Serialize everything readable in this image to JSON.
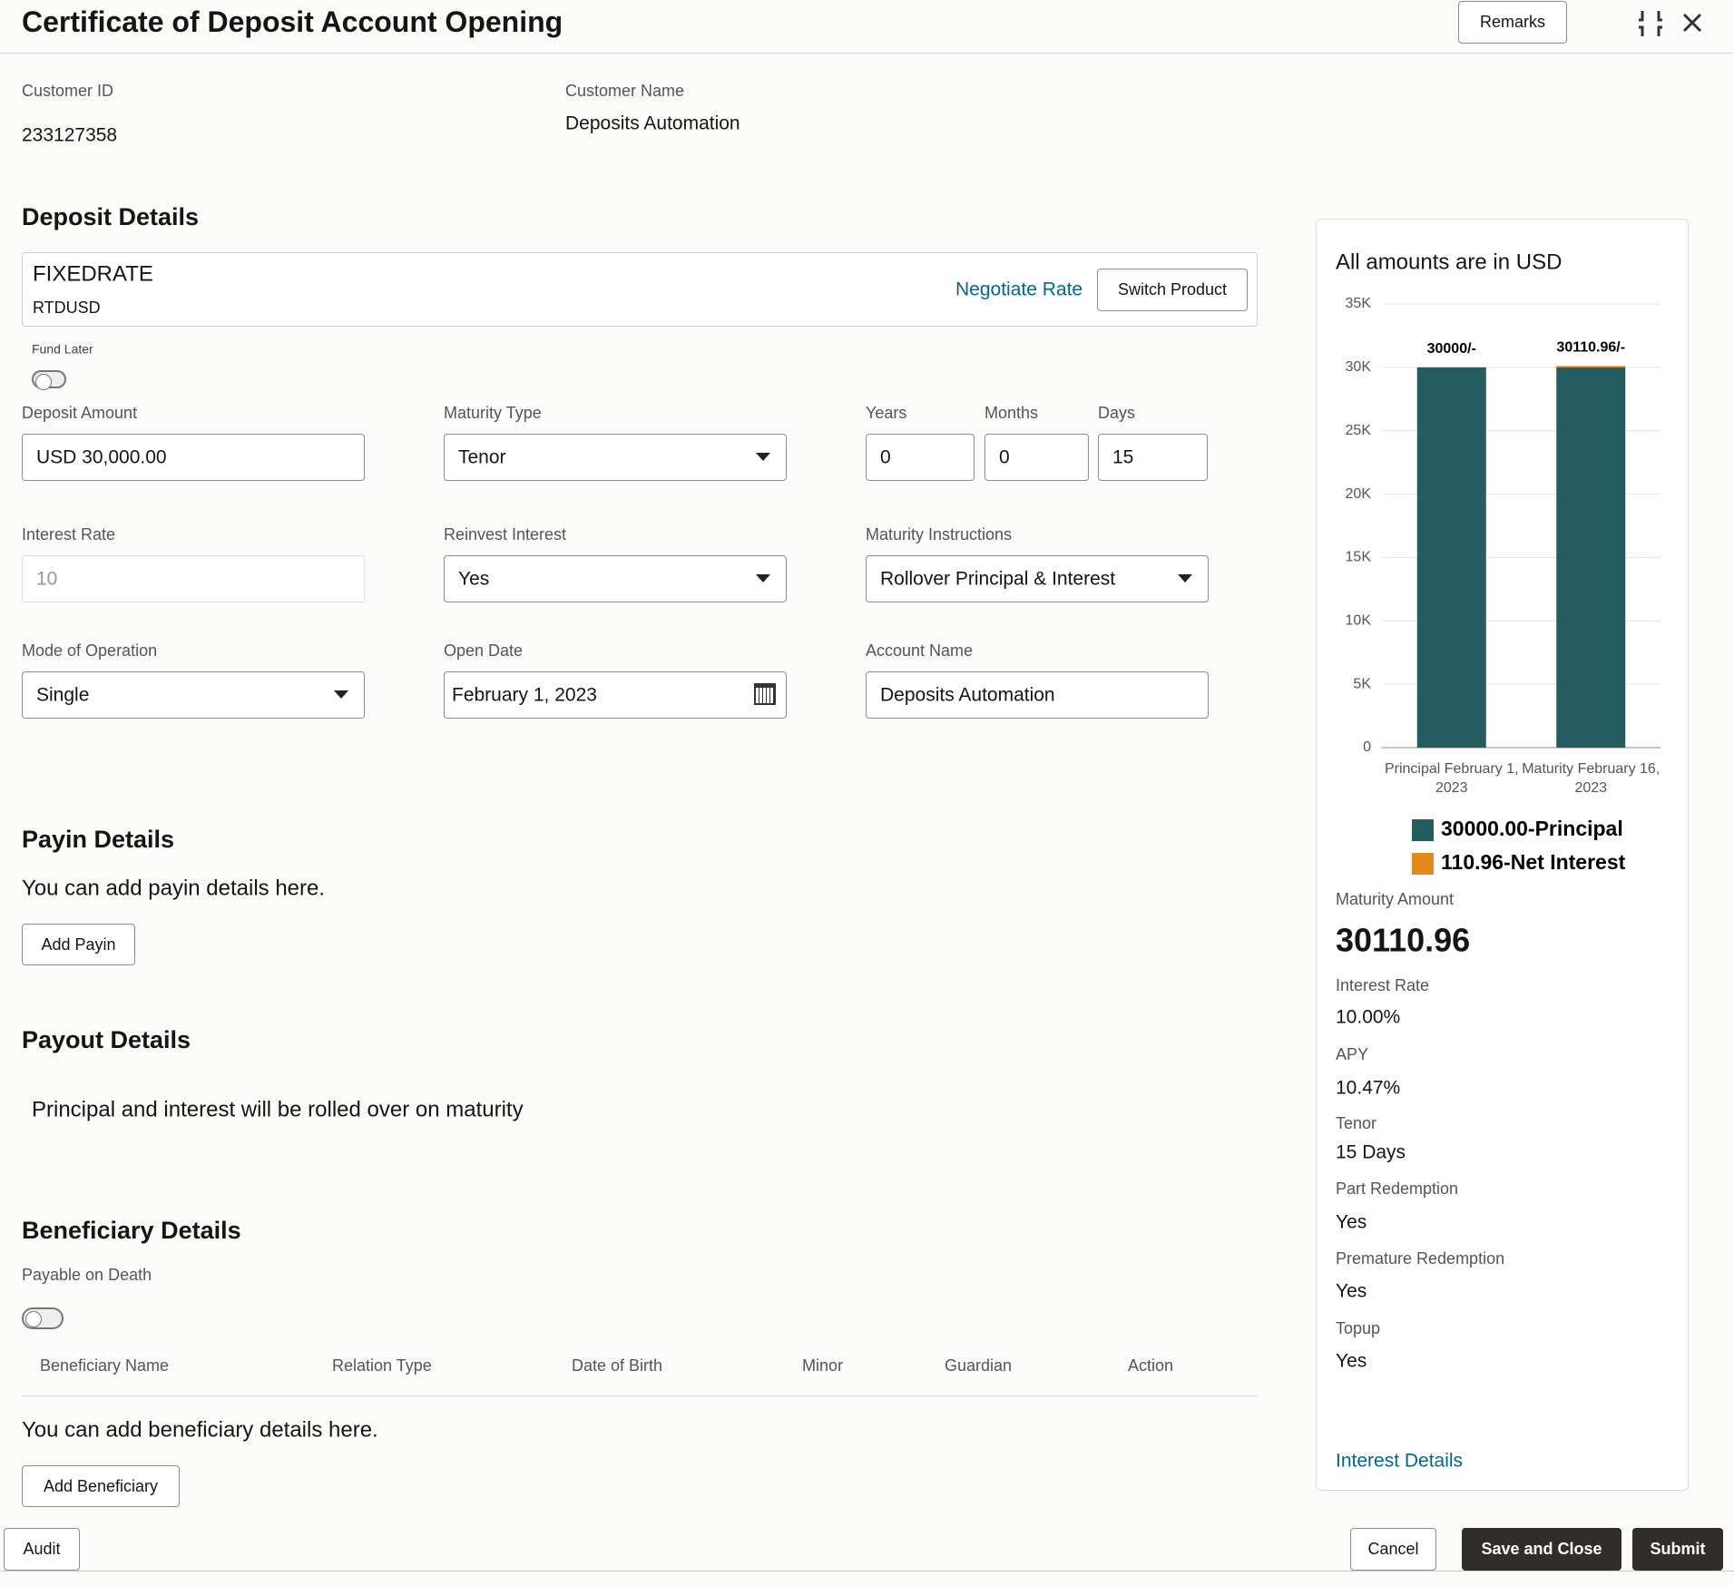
{
  "header": {
    "title": "Certificate of Deposit Account Opening",
    "remarks_button": "Remarks"
  },
  "customer": {
    "id_label": "Customer ID",
    "id": "233127358",
    "name_label": "Customer Name",
    "name": "Deposits Automation"
  },
  "deposit_details": {
    "title": "Deposit Details",
    "product": "FIXEDRATE",
    "product_code": "RTDUSD",
    "negotiate_rate": "Negotiate Rate",
    "switch_product": "Switch Product",
    "fund_later": "Fund Later",
    "fields": [
      {
        "label": "Deposit Amount",
        "value": "USD 30,000.00"
      },
      {
        "label": "Maturity Type",
        "value": "Tenor"
      },
      {
        "label": "Years",
        "value": "0"
      },
      {
        "label": "Months",
        "value": "0"
      },
      {
        "label": "Days",
        "value": "15"
      },
      {
        "label": "Interest Rate",
        "value": "10"
      },
      {
        "label": "Reinvest Interest",
        "value": "Yes"
      },
      {
        "label": "Maturity Instructions",
        "value": "Rollover Principal & Interest"
      },
      {
        "label": "Mode of Operation",
        "value": "Single"
      },
      {
        "label": "Open Date",
        "value": "February 1, 2023"
      },
      {
        "label": "Account Name",
        "value": "Deposits Automation"
      }
    ]
  },
  "payin": {
    "title": "Payin Details",
    "text": "You can add payin details here.",
    "button": "Add Payin"
  },
  "payout": {
    "title": "Payout Details",
    "text": "Principal and interest will be rolled over on maturity"
  },
  "beneficiary": {
    "title": "Beneficiary Details",
    "payable_on_death": "Payable on Death",
    "columns": [
      "Beneficiary Name",
      "Relation Type",
      "Date of Birth",
      "Minor",
      "Guardian",
      "Action"
    ],
    "text": "You can add beneficiary details here.",
    "button": "Add Beneficiary"
  },
  "summary": {
    "note": "All amounts are in USD",
    "items": [
      {
        "label": "Maturity Amount",
        "value": "30110.96"
      },
      {
        "label": "Interest Rate",
        "value": "10.00%"
      },
      {
        "label": "APY",
        "value": "10.47%"
      },
      {
        "label": "Tenor",
        "value": "15 Days"
      },
      {
        "label": "Part Redemption",
        "value": "Yes"
      },
      {
        "label": "Premature Redemption",
        "value": "Yes"
      },
      {
        "label": "Topup",
        "value": "Yes"
      }
    ],
    "link": "Interest Details"
  },
  "chart_data": {
    "type": "bar",
    "stacked": true,
    "categories": [
      [
        "Principal February 1,",
        "2023"
      ],
      [
        "Maturity February 16,",
        "2023"
      ]
    ],
    "series": [
      {
        "name": "30000.00-Principal",
        "color": "#245c5f",
        "values": [
          30000,
          30000
        ]
      },
      {
        "name": "110.96-Net Interest",
        "color": "#e08a1e",
        "values": [
          0,
          110.96
        ]
      }
    ],
    "totals": {
      "values": [
        30000,
        30110.96
      ],
      "value_labels": [
        "30000/-",
        "30110.96/-"
      ]
    },
    "ylim": [
      0,
      35000
    ],
    "yticks": [
      0,
      {
        "value": 5000,
        "label": "5K"
      },
      {
        "value": 10000,
        "label": "10K"
      },
      {
        "value": 15000,
        "label": "15K"
      },
      {
        "value": 20000,
        "label": "20K"
      },
      {
        "value": 25000,
        "label": "25K"
      },
      {
        "value": 30000,
        "label": "30K"
      },
      {
        "value": 35000,
        "label": "35K"
      }
    ],
    "grid": true
  },
  "footer": {
    "audit": "Audit",
    "cancel": "Cancel",
    "save_close": "Save and Close",
    "submit": "Submit"
  }
}
